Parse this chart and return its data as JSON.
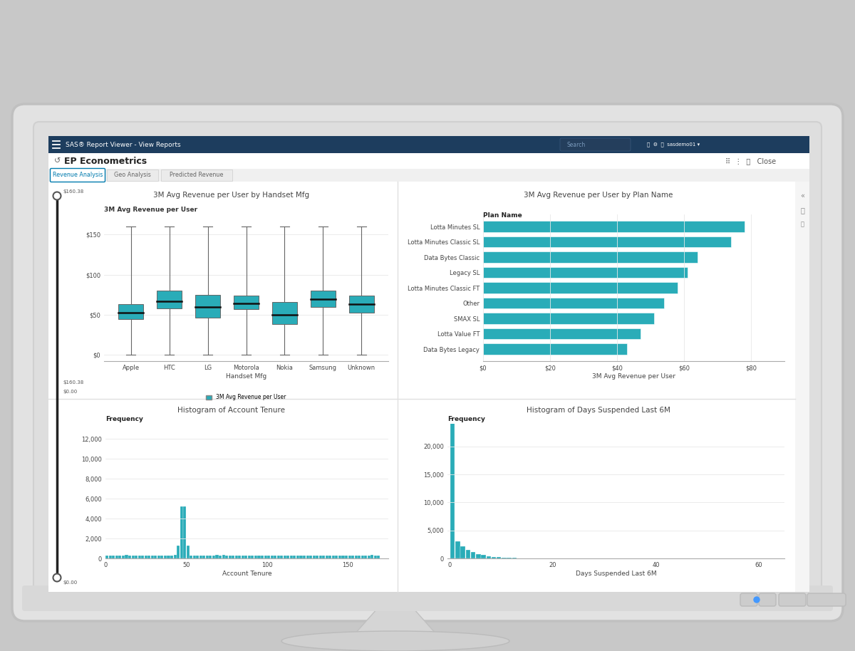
{
  "teal_color": "#2aacb8",
  "grid_color": "#e8e8e8",
  "text_color": "#444444",
  "dark_text": "#222222",
  "app_title": "EP Econometrics",
  "report_viewer_title": "SAS® Report Viewer - View Reports",
  "tabs": [
    "Revenue Analysis",
    "Geo Analysis",
    "Predicted Revenue"
  ],
  "boxplot_title": "3M Avg Revenue per User by Handset Mfg",
  "boxplot_ylabel_label": "3M Avg Revenue per User",
  "boxplot_xlabel": "Handset Mfg",
  "boxplot_categories": [
    "Apple",
    "HTC",
    "LG",
    "Motorola",
    "Nokia",
    "Samsung",
    "Unknown"
  ],
  "boxplot_data": {
    "Apple": {
      "min": 0,
      "q1": 45,
      "median": 53,
      "q3": 63,
      "max": 160
    },
    "HTC": {
      "min": 0,
      "q1": 58,
      "median": 67,
      "q3": 80,
      "max": 160
    },
    "LG": {
      "min": 0,
      "q1": 46,
      "median": 60,
      "q3": 75,
      "max": 160
    },
    "Motorola": {
      "min": 0,
      "q1": 57,
      "median": 64,
      "q3": 74,
      "max": 160
    },
    "Nokia": {
      "min": 0,
      "q1": 38,
      "median": 50,
      "q3": 66,
      "max": 160
    },
    "Samsung": {
      "min": 0,
      "q1": 60,
      "median": 69,
      "q3": 80,
      "max": 160
    },
    "Unknown": {
      "min": 0,
      "q1": 53,
      "median": 63,
      "q3": 74,
      "max": 160
    }
  },
  "boxplot_yticks": [
    0,
    50,
    100,
    150
  ],
  "boxplot_ytick_labels": [
    "$0",
    "$50",
    "$100",
    "$150"
  ],
  "bar_title": "3M Avg Revenue per User by Plan Name",
  "bar_xlabel": "3M Avg Revenue per User",
  "bar_categories": [
    "Lotta Minutes SL",
    "Lotta Minutes Classic SL",
    "Data Bytes Classic",
    "Legacy SL",
    "Lotta Minutes Classic FT",
    "Other",
    "SMAX SL",
    "Lotta Value FT",
    "Data Bytes Legacy"
  ],
  "bar_values": [
    78,
    74,
    64,
    61,
    58,
    54,
    51,
    47,
    43
  ],
  "bar_xticks": [
    0,
    20,
    40,
    60,
    80
  ],
  "bar_xtick_labels": [
    "$0",
    "$20",
    "$40",
    "$60",
    "$80"
  ],
  "hist1_title": "Histogram of Account Tenure",
  "hist1_xlabel": "Account Tenure",
  "hist1_ylabel": "Frequency",
  "hist1_xticks": [
    0,
    50,
    100,
    150
  ],
  "hist1_yticks": [
    0,
    2000,
    4000,
    6000,
    8000,
    10000,
    12000
  ],
  "hist1_ytick_labels": [
    "0",
    "2,000",
    "4,000",
    "6,000",
    "8,000",
    "10,000",
    "12,000"
  ],
  "hist2_title": "Histogram of Days Suspended Last 6M",
  "hist2_xlabel": "Days Suspended Last 6M",
  "hist2_ylabel": "Frequency",
  "hist2_xticks": [
    0,
    20,
    40,
    60
  ],
  "hist2_yticks": [
    0,
    5000,
    10000,
    15000,
    20000
  ],
  "hist2_ytick_labels": [
    "0",
    "5,000",
    "10,000",
    "15,000",
    "20,000"
  ],
  "slider_top": "$160.38",
  "slider_bottom": "$0.00",
  "slider_mid_top": "$160.38",
  "slider_mid_bot": "$0.00"
}
